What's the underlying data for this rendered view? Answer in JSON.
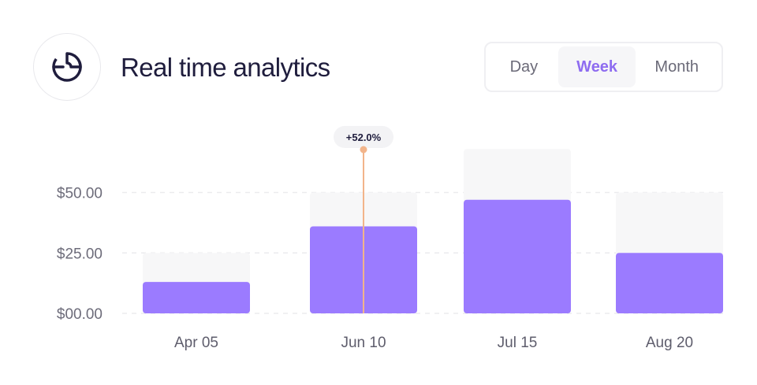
{
  "header": {
    "title": "Real time analytics",
    "icon": "analytics-donut-icon"
  },
  "range_tabs": {
    "items": [
      "Day",
      "Week",
      "Month"
    ],
    "selected": "Week"
  },
  "colors": {
    "bar": "#9b7bff",
    "bar_track": "#f7f7f8",
    "tooltip_line": "#f2b48a",
    "accent": "#8e6cf0"
  },
  "tooltip": {
    "label": "+52.0%",
    "category": "Jun 10"
  },
  "chart_data": {
    "type": "bar",
    "categories": [
      "Apr 05",
      "Jun 10",
      "Jul 15",
      "Aug 20"
    ],
    "values": [
      13,
      36,
      47,
      25
    ],
    "track_values": [
      25,
      50,
      68,
      50
    ],
    "yticks": [
      "$00.00",
      "$25.00",
      "$50.00"
    ],
    "ytick_values": [
      0,
      25,
      50
    ],
    "ylim": [
      0,
      70
    ],
    "grid": true
  }
}
